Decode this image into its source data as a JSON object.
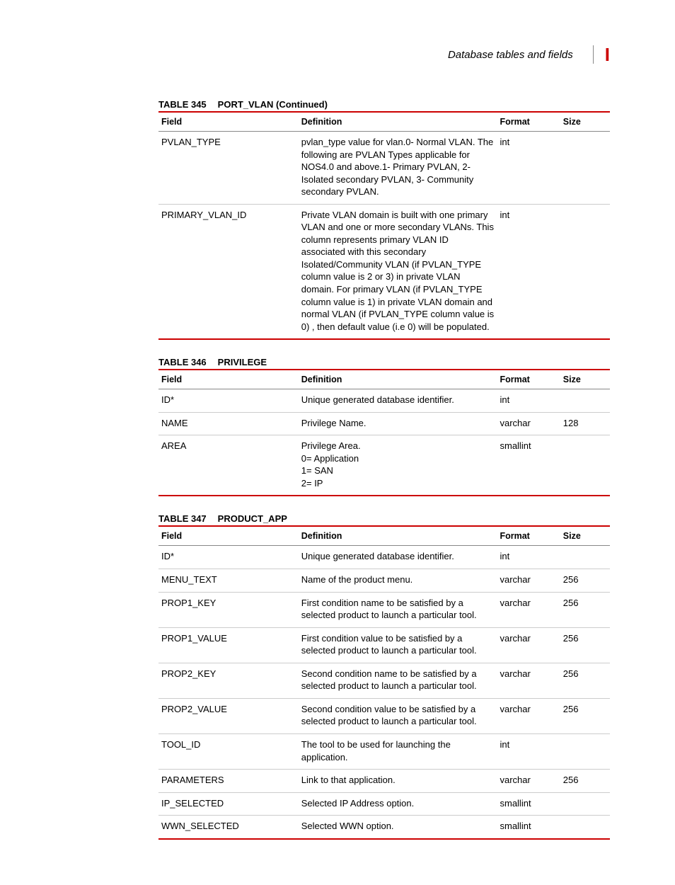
{
  "header": {
    "section_title": "Database tables and fields",
    "appendix_marker": "I"
  },
  "columns": {
    "field": "Field",
    "definition": "Definition",
    "format": "Format",
    "size": "Size"
  },
  "tables": [
    {
      "number": "TABLE 345",
      "title": "PORT_VLAN (Continued)",
      "rows": [
        {
          "field": "PVLAN_TYPE",
          "definition": [
            "pvlan_type value for vlan.0- Normal VLAN. The following are PVLAN Types applicable for NOS4.0 and above.1- Primary PVLAN, 2- Isolated secondary PVLAN, 3- Community secondary PVLAN."
          ],
          "format": "int",
          "size": ""
        },
        {
          "field": "PRIMARY_VLAN_ID",
          "definition": [
            "Private VLAN domain is built with one primary VLAN and one or more secondary VLANs.  This column represents primary VLAN ID associated with this secondary Isolated/Community VLAN (if PVLAN_TYPE column value is 2 or 3) in private VLAN domain. For primary VLAN (if PVLAN_TYPE column value is 1) in private VLAN domain and normal VLAN (if PVLAN_TYPE column value is 0) , then default value (i.e 0) will be populated."
          ],
          "format": "int",
          "size": ""
        }
      ]
    },
    {
      "number": "TABLE 346",
      "title": "PRIVILEGE",
      "rows": [
        {
          "field": "ID*",
          "definition": [
            "Unique generated database identifier."
          ],
          "format": "int",
          "size": ""
        },
        {
          "field": "NAME",
          "definition": [
            "Privilege Name."
          ],
          "format": "varchar",
          "size": "128"
        },
        {
          "field": "AREA",
          "definition": [
            "Privilege Area.",
            "0= Application",
            "1= SAN",
            "2= IP"
          ],
          "format": "smallint",
          "size": ""
        }
      ]
    },
    {
      "number": "TABLE 347",
      "title": "PRODUCT_APP",
      "rows": [
        {
          "field": "ID*",
          "definition": [
            "Unique generated database identifier."
          ],
          "format": "int",
          "size": ""
        },
        {
          "field": "MENU_TEXT",
          "definition": [
            "Name of the product menu."
          ],
          "format": "varchar",
          "size": "256"
        },
        {
          "field": "PROP1_KEY",
          "definition": [
            "First condition name to be satisfied by a selected product to launch a particular tool."
          ],
          "format": "varchar",
          "size": "256"
        },
        {
          "field": "PROP1_VALUE",
          "definition": [
            "First condition value to be satisfied by a selected product to launch a particular tool."
          ],
          "format": "varchar",
          "size": "256"
        },
        {
          "field": "PROP2_KEY",
          "definition": [
            "Second condition name to be satisfied by a selected product to launch a particular tool."
          ],
          "format": "varchar",
          "size": "256"
        },
        {
          "field": "PROP2_VALUE",
          "definition": [
            "Second condition value to be satisfied by a selected product to launch a particular tool."
          ],
          "format": "varchar",
          "size": "256"
        },
        {
          "field": "TOOL_ID",
          "definition": [
            "The tool to be used for launching the application."
          ],
          "format": "int",
          "size": ""
        },
        {
          "field": "PARAMETERS",
          "definition": [
            "Link to that application."
          ],
          "format": "varchar",
          "size": "256"
        },
        {
          "field": "IP_SELECTED",
          "definition": [
            "Selected IP Address option."
          ],
          "format": "smallint",
          "size": ""
        },
        {
          "field": "WWN_SELECTED",
          "definition": [
            "Selected WWN option."
          ],
          "format": "smallint",
          "size": ""
        }
      ]
    }
  ]
}
